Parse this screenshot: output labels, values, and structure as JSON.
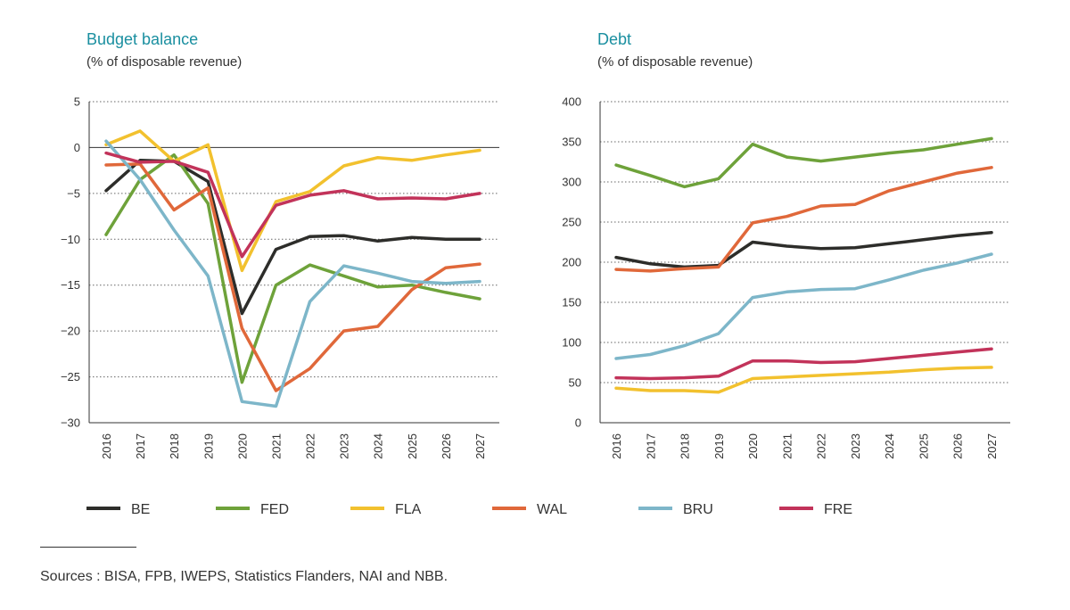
{
  "chart_data": [
    {
      "type": "line",
      "title": "Budget balance",
      "subtitle": "(% of disposable revenue)",
      "categories": [
        "2016",
        "2017",
        "2018",
        "2019",
        "2020",
        "2021",
        "2022",
        "2023",
        "2024",
        "2025",
        "2026",
        "2027"
      ],
      "ylim": [
        -30,
        5
      ],
      "yticks": [
        5,
        0,
        -5,
        -10,
        -15,
        -20,
        -25,
        -30
      ],
      "ytick_labels": [
        "5",
        "0",
        "−5",
        "−10",
        "−15",
        "−20",
        "−25",
        "−30"
      ],
      "grid": true,
      "series": [
        {
          "name": "BE",
          "color": "#2d2d2a",
          "values": [
            -4.7,
            -1.4,
            -1.5,
            -3.7,
            -18.1,
            -11.1,
            -9.7,
            -9.6,
            -10.2,
            -9.8,
            -10.0,
            -10.0
          ]
        },
        {
          "name": "FED",
          "color": "#6ea23a",
          "values": [
            -9.5,
            -3.5,
            -0.8,
            -6.1,
            -25.6,
            -15.0,
            -12.8,
            -14.0,
            -15.2,
            -15.0,
            -15.8,
            -16.5
          ]
        },
        {
          "name": "FLA",
          "color": "#f2c12e",
          "values": [
            0.3,
            1.8,
            -1.5,
            0.3,
            -13.4,
            -5.9,
            -4.8,
            -2.0,
            -1.1,
            -1.4,
            -0.8,
            -0.3
          ]
        },
        {
          "name": "WAL",
          "color": "#e0683a",
          "values": [
            -1.9,
            -1.8,
            -6.8,
            -4.4,
            -19.7,
            -26.5,
            -24.1,
            -20.0,
            -19.5,
            -15.5,
            -13.1,
            -12.7
          ]
        },
        {
          "name": "BRU",
          "color": "#7db6c9",
          "values": [
            0.7,
            -3.5,
            -9.0,
            -14.0,
            -27.7,
            -28.2,
            -16.8,
            -12.9,
            -13.7,
            -14.6,
            -14.8,
            -14.6
          ]
        },
        {
          "name": "FRE",
          "color": "#c2335a",
          "values": [
            -0.6,
            -1.6,
            -1.5,
            -2.7,
            -11.9,
            -6.3,
            -5.2,
            -4.7,
            -5.6,
            -5.5,
            -5.6,
            -5.0
          ]
        }
      ]
    },
    {
      "type": "line",
      "title": "Debt",
      "subtitle": "(% of disposable revenue)",
      "categories": [
        "2016",
        "2017",
        "2018",
        "2019",
        "2020",
        "2021",
        "2022",
        "2023",
        "2024",
        "2025",
        "2026",
        "2027"
      ],
      "ylim": [
        0,
        400
      ],
      "yticks": [
        400,
        350,
        300,
        250,
        200,
        150,
        100,
        50,
        0
      ],
      "ytick_labels": [
        "400",
        "350",
        "300",
        "250",
        "200",
        "150",
        "100",
        "50",
        "0"
      ],
      "grid": true,
      "series": [
        {
          "name": "BE",
          "color": "#2d2d2a",
          "values": [
            206,
            198,
            194,
            196,
            225,
            220,
            217,
            218,
            223,
            228,
            233,
            237
          ]
        },
        {
          "name": "FED",
          "color": "#6ea23a",
          "values": [
            321,
            308,
            294,
            304,
            347,
            331,
            326,
            331,
            336,
            340,
            347,
            354
          ]
        },
        {
          "name": "WAL",
          "color": "#e0683a",
          "values": [
            191,
            189,
            192,
            194,
            249,
            257,
            270,
            272,
            289,
            300,
            311,
            318
          ]
        },
        {
          "name": "BRU",
          "color": "#7db6c9",
          "values": [
            80,
            85,
            96,
            111,
            156,
            163,
            166,
            167,
            178,
            190,
            199,
            210
          ]
        },
        {
          "name": "FRE",
          "color": "#c2335a",
          "values": [
            56,
            55,
            56,
            58,
            77,
            77,
            75,
            76,
            80,
            84,
            88,
            92
          ]
        },
        {
          "name": "FLA",
          "color": "#f2c12e",
          "values": [
            43,
            40,
            40,
            38,
            55,
            57,
            59,
            61,
            63,
            66,
            68,
            69
          ]
        }
      ]
    }
  ],
  "legend": [
    {
      "name": "BE",
      "color": "#2d2d2a"
    },
    {
      "name": "FED",
      "color": "#6ea23a"
    },
    {
      "name": "FLA",
      "color": "#f2c12e"
    },
    {
      "name": "WAL",
      "color": "#e0683a"
    },
    {
      "name": "BRU",
      "color": "#7db6c9"
    },
    {
      "name": "FRE",
      "color": "#c2335a"
    }
  ],
  "sources": "Sources : BISA, FPB, IWEPS, Statistics Flanders, NAI and NBB."
}
